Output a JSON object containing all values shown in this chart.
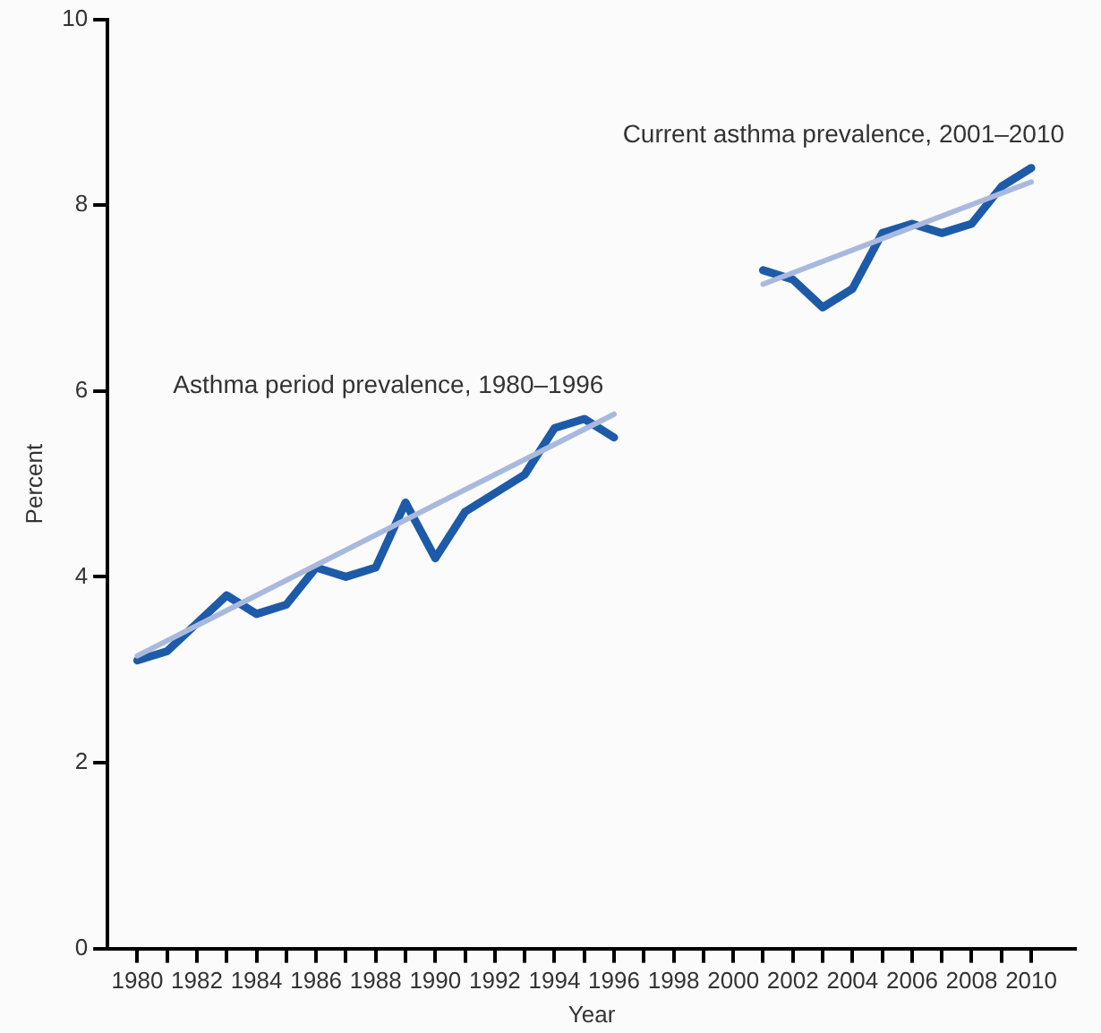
{
  "chart_data": {
    "type": "line",
    "xlabel": "Year",
    "ylabel": "Percent",
    "xlim": [
      1979,
      2011.5
    ],
    "ylim": [
      0,
      10
    ],
    "yticks": [
      0,
      2,
      4,
      6,
      8,
      10
    ],
    "xticks": [
      1980,
      {
        "value": 1981,
        "label": null
      },
      1982,
      {
        "value": 1983,
        "label": null
      },
      1984,
      {
        "value": 1985,
        "label": null
      },
      1986,
      {
        "value": 1987,
        "label": null
      },
      1988,
      {
        "value": 1989,
        "label": null
      },
      1990,
      {
        "value": 1991,
        "label": null
      },
      1992,
      {
        "value": 1993,
        "label": null
      },
      1994,
      {
        "value": 1995,
        "label": null
      },
      1996,
      {
        "value": 1997,
        "label": null
      },
      1998,
      {
        "value": 1999,
        "label": null
      },
      2000,
      {
        "value": 2001,
        "label": null
      },
      2002,
      {
        "value": 2003,
        "label": null
      },
      2004,
      {
        "value": 2005,
        "label": null
      },
      2006,
      {
        "value": 2007,
        "label": null
      },
      2008,
      {
        "value": 2009,
        "label": null
      },
      2010
    ],
    "grid": false,
    "legend": false,
    "marker": "none",
    "line_style": "solid",
    "series": [
      {
        "color": "#a9b9de",
        "x": [
          1980,
          1996
        ],
        "values": [
          3.15,
          5.75
        ]
      },
      {
        "color": "#a9b9de",
        "x": [
          2001,
          2010
        ],
        "values": [
          7.15,
          8.25
        ]
      },
      {
        "color": "#1d5ba8",
        "x": [
          1980,
          1981,
          1982,
          1983,
          1984,
          1985,
          1986,
          1987,
          1988,
          1989,
          1990,
          1991,
          1992,
          1993,
          1994,
          1995,
          1996
        ],
        "values": [
          3.1,
          3.2,
          3.5,
          3.8,
          3.6,
          3.7,
          4.1,
          4.0,
          4.1,
          4.8,
          4.2,
          4.7,
          4.9,
          5.1,
          5.6,
          5.7,
          5.5
        ]
      },
      {
        "color": "#1d5ba8",
        "x": [
          2001,
          2002,
          2003,
          2004,
          2005,
          2006,
          2007,
          2008,
          2009,
          2010
        ],
        "values": [
          7.3,
          7.2,
          6.9,
          7.1,
          7.7,
          7.8,
          7.7,
          7.8,
          8.2,
          8.4
        ]
      }
    ],
    "annotations": [
      "Asthma period prevalence, 1980–1996",
      "Current asthma prevalence, 2001–2010"
    ]
  }
}
